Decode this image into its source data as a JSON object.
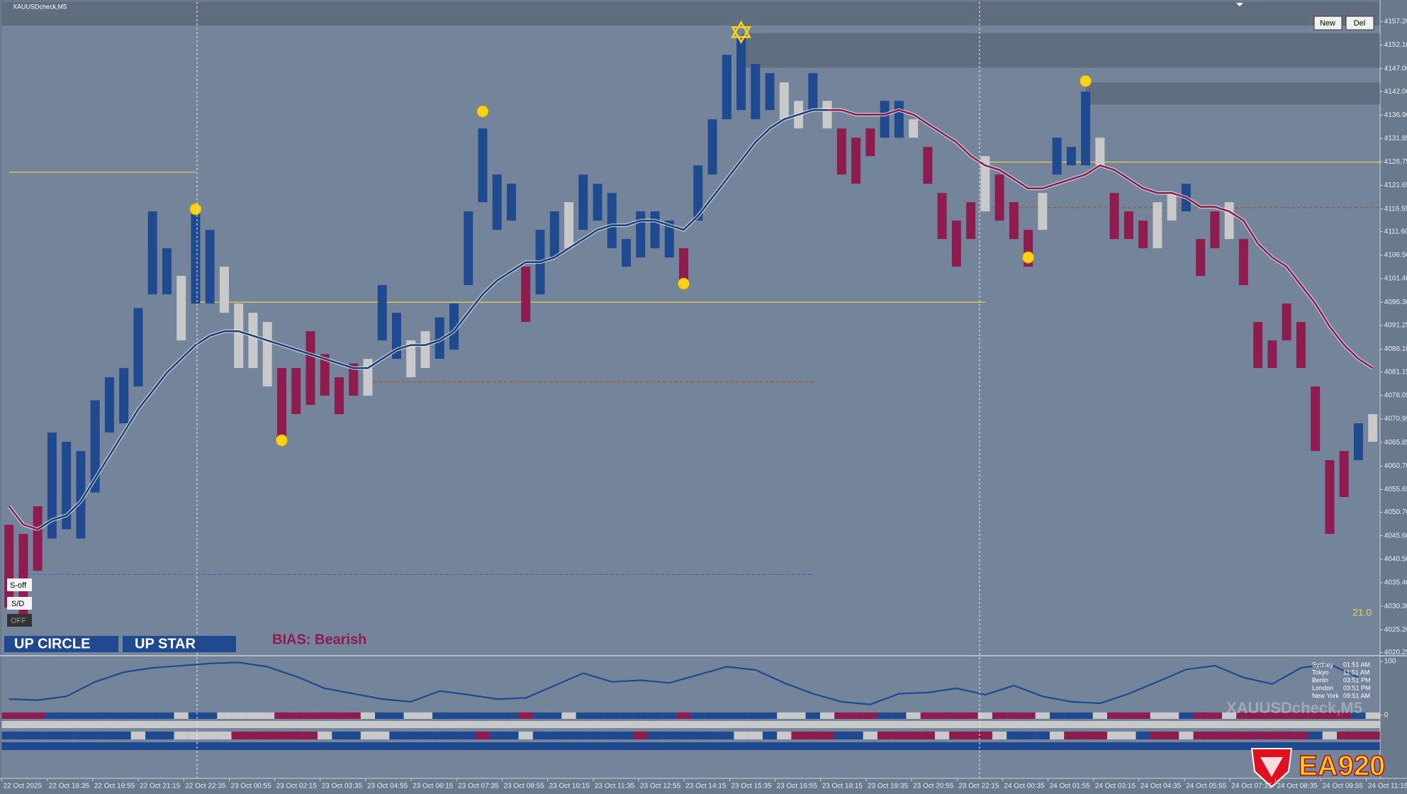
{
  "chart_data": {
    "type": "range_bar",
    "title": "XAUUSDcheck,M5",
    "ylim": [
      4019.7,
      4161.3
    ],
    "yticks": [
      {
        "value": 4157.2,
        "label": "4157.20"
      },
      {
        "value": 4152.1,
        "label": "4152.10"
      },
      {
        "value": 4147,
        "label": "4147.00"
      },
      {
        "value": 4142,
        "label": "4142.00"
      },
      {
        "value": 4136.9,
        "label": "4136.90"
      },
      4131.85,
      4126.75,
      4121.65,
      4116.55,
      {
        "value": 4111.6,
        "label": "4111.60"
      },
      {
        "value": 4106.5,
        "label": "4106.50"
      },
      {
        "value": 4101.4,
        "label": "4101.40"
      },
      {
        "value": 4096.3,
        "label": "4096.30"
      },
      4091.25,
      {
        "value": 4086.1,
        "label": "4086.10"
      },
      4081.15,
      4076.05,
      4070.95,
      4065.85,
      {
        "value": 4060.7,
        "label": "4060.70"
      },
      4055.65,
      {
        "value": 4050.7,
        "label": "4050.70"
      },
      {
        "value": 4045.6,
        "label": "4045.60"
      },
      {
        "value": 4040.5,
        "label": "4040.50"
      },
      {
        "value": 4035.4,
        "label": "4035.40"
      },
      {
        "value": 4030.3,
        "label": "4030.30"
      },
      {
        "value": 4025.2,
        "label": "4025.20"
      },
      4020.25
    ],
    "time_labels": [
      "22 Oct 2025",
      "22 Oct 18:35",
      "22 Oct 19:55",
      "22 Oct 21:15",
      "22 Oct 22:35",
      "23 Oct 00:55",
      "23 Oct 02:15",
      "23 Oct 03:35",
      "23 Oct 04:55",
      "23 Oct 06:15",
      "23 Oct 07:35",
      "23 Oct 08:55",
      "23 Oct 10:15",
      "23 Oct 11:35",
      "23 Oct 12:55",
      "23 Oct 14:15",
      "23 Oct 15:35",
      "23 Oct 16:55",
      "23 Oct 18:15",
      "23 Oct 19:35",
      "23 Oct 20:55",
      "23 Oct 22:15",
      "24 Oct 00:35",
      "24 Oct 01:55",
      "24 Oct 03:15",
      "24 Oct 04:35",
      "24 Oct 05:55",
      "24 Oct 07:15",
      "24 Oct 08:35",
      "24 Oct 09:55",
      "24 Oct 11:15"
    ],
    "high": [
      4048,
      4046,
      4052,
      4068,
      4066,
      4064,
      4075,
      4080,
      4082,
      4095,
      4116,
      4108,
      4102,
      4116,
      4112,
      4104,
      4096,
      4094,
      4092,
      4082,
      4082,
      4090,
      4085,
      4080,
      4083,
      4084,
      4100,
      4094,
      4088,
      4090,
      4093,
      4096,
      4116,
      4134,
      4124,
      4122,
      4104,
      4112,
      4116,
      4118,
      4124,
      4122,
      4120,
      4110,
      4116,
      4116,
      4114,
      4108,
      4126,
      4136,
      4150,
      4154,
      4148,
      4146,
      4144,
      4140,
      4146,
      4140,
      4134,
      4132,
      4134,
      4140,
      4140,
      4136,
      4130,
      4120,
      4114,
      4118,
      4128,
      4124,
      4118,
      4112,
      4120,
      4132,
      4130,
      4142,
      4132,
      4120,
      4116,
      4114,
      4118,
      4120,
      4122,
      4110,
      4116,
      4118,
      4110,
      4092,
      4088,
      4096,
      4092,
      4078,
      4062,
      4064,
      4070,
      4072
    ],
    "low": [
      4030,
      4028,
      4038,
      4045,
      4047,
      4045,
      4055,
      4068,
      4070,
      4078,
      4098,
      4098,
      4088,
      4096,
      4096,
      4094,
      4082,
      4082,
      4078,
      4066,
      4072,
      4074,
      4076,
      4072,
      4076,
      4076,
      4088,
      4084,
      4080,
      4082,
      4084,
      4086,
      4100,
      4118,
      4112,
      4114,
      4092,
      4098,
      4106,
      4108,
      4112,
      4114,
      4108,
      4104,
      4106,
      4108,
      4106,
      4100,
      4114,
      4124,
      4136,
      4138,
      4136,
      4138,
      4136,
      4134,
      4138,
      4134,
      4124,
      4122,
      4128,
      4132,
      4132,
      4132,
      4122,
      4110,
      4104,
      4110,
      4116,
      4114,
      4110,
      4104,
      4112,
      4124,
      4126,
      4126,
      4126,
      4110,
      4110,
      4108,
      4108,
      4114,
      4116,
      4102,
      4108,
      4110,
      4100,
      4082,
      4082,
      4088,
      4082,
      4064,
      4046,
      4054,
      4062,
      4066
    ],
    "states": [
      "down",
      "down",
      "down",
      "up",
      "up",
      "up",
      "up",
      "up",
      "up",
      "up",
      "up",
      "up",
      "neutral",
      "up",
      "up",
      "neutral",
      "neutral",
      "neutral",
      "neutral",
      "down",
      "down",
      "down",
      "down",
      "down",
      "down",
      "neutral",
      "up",
      "up",
      "neutral",
      "neutral",
      "up",
      "up",
      "up",
      "up",
      "up",
      "up",
      "down",
      "up",
      "up",
      "neutral",
      "up",
      "up",
      "up",
      "up",
      "up",
      "up",
      "up",
      "down",
      "up",
      "up",
      "up",
      "up",
      "up",
      "up",
      "neutral",
      "neutral",
      "up",
      "neutral",
      "down",
      "down",
      "down",
      "up",
      "up",
      "neutral",
      "down",
      "down",
      "down",
      "down",
      "neutral",
      "down",
      "down",
      "down",
      "neutral",
      "up",
      "up",
      "up",
      "neutral",
      "down",
      "down",
      "down",
      "neutral",
      "neutral",
      "up",
      "down",
      "down",
      "neutral",
      "down",
      "down",
      "down",
      "down",
      "down",
      "down",
      "down",
      "down",
      "up",
      "neutral"
    ],
    "colors": {
      "up": "#1f4a8f",
      "down": "#8e1c4e",
      "neutral": "#c9c9c9"
    },
    "ma": [
      {
        "color": "#8e1c4e",
        "values": [
          4052,
          4048,
          4047,
          null,
          null,
          null,
          null,
          null,
          null,
          null,
          null,
          null,
          null,
          null,
          null,
          null,
          null,
          null,
          null,
          null,
          null,
          null,
          null,
          null,
          null,
          null,
          null,
          null,
          null,
          null,
          null,
          null,
          null,
          null,
          null,
          null,
          null,
          null,
          null,
          null,
          null,
          null,
          null,
          null,
          null,
          null,
          null,
          null,
          null,
          null,
          null,
          null,
          null,
          null,
          null,
          null,
          null,
          4138,
          4138,
          4137,
          4137,
          4137,
          4138,
          4137,
          4135,
          4133,
          4131,
          4128,
          4126,
          4125,
          4123,
          4121,
          4121,
          4122,
          4123,
          4124,
          4126,
          4125,
          4123,
          4121,
          4120,
          4120,
          4119,
          4117,
          4117,
          4116,
          4114,
          4109,
          4106,
          4104,
          4100,
          4096,
          4091,
          4087,
          4084,
          4082
        ]
      },
      {
        "color": "#1d3f78",
        "values": [
          null,
          null,
          4047,
          4049,
          4050,
          4053,
          4058,
          4063,
          4068,
          4073,
          4077,
          4081,
          4084,
          4087,
          4089,
          4090,
          4090,
          4089,
          4088,
          4087,
          4086,
          4085,
          4084,
          4083,
          4082,
          4082,
          4084,
          4086,
          4087,
          4087,
          4088,
          4090,
          4094,
          4098,
          4101,
          4103,
          4105,
          4105,
          4106,
          4108,
          4110,
          4112,
          4113,
          4113,
          4114,
          4114,
          4113,
          4112,
          4115,
          4119,
          4123,
          4127,
          4131,
          4134,
          4136,
          4137,
          4138,
          4138,
          null,
          null,
          null,
          null,
          null,
          null,
          null,
          null,
          null,
          null,
          null,
          null,
          null,
          null,
          null,
          null,
          null,
          null,
          null,
          null,
          null,
          null,
          null,
          null,
          null,
          null,
          null,
          null,
          null,
          null,
          null,
          null,
          null,
          null,
          null,
          null,
          null,
          null
        ]
      }
    ],
    "levels": [
      {
        "value": 4124.5,
        "from": 0,
        "to": 13,
        "color": "#e8d24a",
        "dashed": false
      },
      {
        "value": 4096.3,
        "from": 13,
        "to": 68,
        "color": "#e8d24a",
        "dashed": false
      },
      {
        "value": 4126.7,
        "from": 68,
        "to": 95,
        "color": "#e8d24a",
        "dashed": false
      },
      {
        "value": 4079,
        "from": 25,
        "to": 56,
        "color": "#9a5a3a",
        "dashed": true
      },
      {
        "value": 4116.8,
        "from": 68,
        "to": 95,
        "color": "#9a5a3a",
        "dashed": true
      },
      {
        "value": 4037.2,
        "from": 0,
        "to": 56,
        "color": "#4a62b0",
        "dashed": true
      }
    ],
    "zones": [
      {
        "top": 4154.7,
        "bottom": 4147.2,
        "from": 51,
        "to": 95
      },
      {
        "top": 4144,
        "bottom": 4139.2,
        "from": 75,
        "to": 95
      }
    ],
    "swings": [
      {
        "index": 13,
        "value": 4116.5
      },
      {
        "index": 19,
        "value": 4066.3
      },
      {
        "index": 33,
        "value": 4137.7
      },
      {
        "index": 47,
        "value": 4100.3
      },
      {
        "index": 71,
        "value": 4106
      },
      {
        "index": 75,
        "value": 4144.3
      }
    ],
    "star": {
      "index": 51,
      "value": 4154.9
    },
    "oscillator": {
      "ylim": [
        0,
        100
      ],
      "yticks": [
        100,
        0
      ],
      "color": "#1f4a8f",
      "values": [
        30,
        28,
        35,
        62,
        80,
        88,
        92,
        96,
        98,
        90,
        72,
        50,
        40,
        30,
        25,
        45,
        38,
        30,
        32,
        55,
        78,
        62,
        65,
        60,
        75,
        90,
        84,
        60,
        40,
        25,
        20,
        40,
        42,
        50,
        38,
        55,
        35,
        25,
        22,
        40,
        62,
        85,
        92,
        70,
        58,
        88,
        95,
        70
      ]
    },
    "buttons": [
      "New",
      "Del"
    ],
    "panel": [
      "S-off",
      "S/D",
      "OFF"
    ],
    "signals": [
      "UP CIRCLE",
      "UP STAR"
    ],
    "bias": "BIAS: Bearish",
    "indicator_value": {
      "value": 21,
      "label": "21.0"
    },
    "sessions": [
      {
        "city": "Sydney",
        "time": "01:51 AM"
      },
      {
        "city": "Tokyo",
        "time": "11:51 AM"
      },
      {
        "city": "Berlin",
        "time": "03:51 PM"
      },
      {
        "city": "London",
        "time": "03:51 PM"
      },
      {
        "city": "New York",
        "time": "09:51 AM"
      }
    ],
    "watermark": "XAUUSDcheck,M5",
    "logo": "EA920"
  }
}
